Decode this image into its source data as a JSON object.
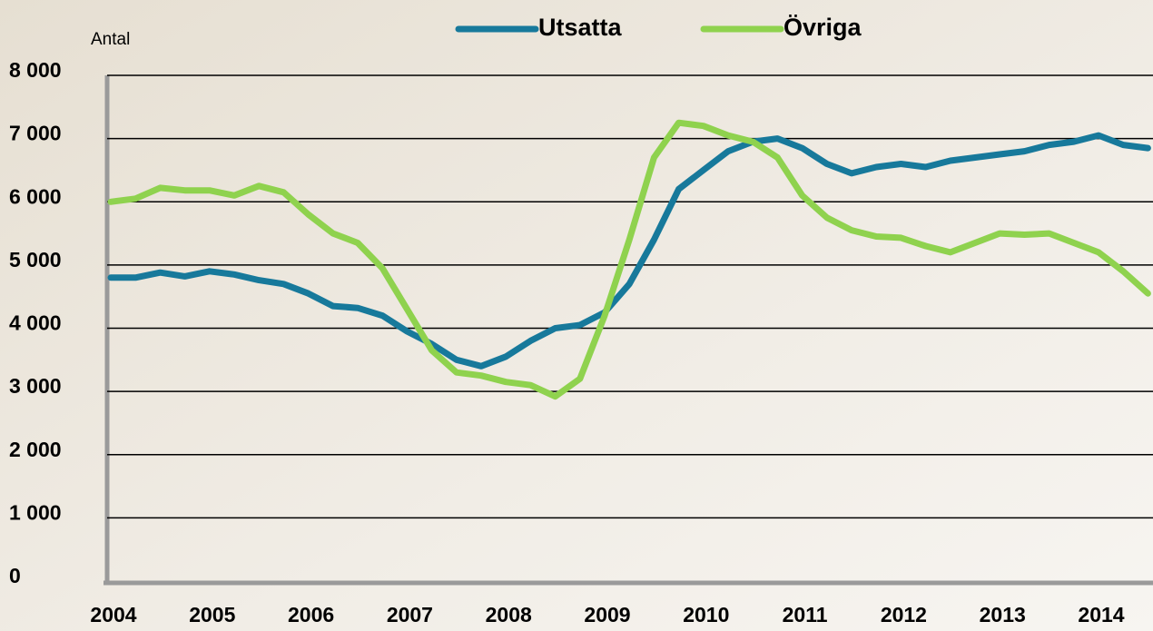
{
  "chart_data": {
    "type": "line",
    "y_label": "Antal",
    "categories": [
      "2004",
      null,
      null,
      null,
      "2005",
      null,
      null,
      null,
      "2006",
      null,
      null,
      null,
      "2007",
      null,
      null,
      null,
      "2008",
      null,
      null,
      null,
      "2009",
      null,
      null,
      null,
      "2010",
      null,
      null,
      null,
      "2011",
      null,
      null,
      null,
      "2012",
      null,
      null,
      null,
      "2013",
      null,
      null,
      null,
      "2014",
      null,
      null
    ],
    "series": [
      {
        "name": "Utsatta",
        "color": "#17799b",
        "values": [
          4800,
          4800,
          4880,
          4820,
          4900,
          4850,
          4760,
          4700,
          4550,
          4350,
          4320,
          4200,
          3950,
          3750,
          3500,
          3400,
          3550,
          3800,
          4000,
          4050,
          4250,
          4700,
          5400,
          6200,
          6500,
          6800,
          6950,
          7000,
          6850,
          6600,
          6450,
          6550,
          6600,
          6550,
          6650,
          6700,
          6750,
          6800,
          6900,
          6950,
          7050,
          6900,
          6850
        ]
      },
      {
        "name": "Övriga",
        "color": "#8fd24e",
        "values": [
          6000,
          6050,
          6220,
          6180,
          6180,
          6100,
          6250,
          6150,
          5800,
          5500,
          5350,
          4950,
          4300,
          3650,
          3300,
          3250,
          3150,
          3100,
          2920,
          3200,
          4200,
          5400,
          6700,
          7250,
          7200,
          7050,
          6950,
          6700,
          6100,
          5750,
          5550,
          5450,
          5430,
          5300,
          5200,
          5350,
          5500,
          5480,
          5500,
          5350,
          5200,
          4900,
          4550
        ]
      }
    ],
    "ylim": [
      0,
      8000
    ],
    "yticks": [
      0,
      {
        "value": 1000,
        "label": "1 000"
      },
      {
        "value": 2000,
        "label": "2 000"
      },
      {
        "value": 3000,
        "label": "3 000"
      },
      {
        "value": 4000,
        "label": "4 000"
      },
      {
        "value": 5000,
        "label": "5 000"
      },
      {
        "value": 6000,
        "label": "6 000"
      },
      {
        "value": 7000,
        "label": "7 000"
      },
      {
        "value": 8000,
        "label": "8 000"
      }
    ],
    "grid": true,
    "legend": "top"
  }
}
